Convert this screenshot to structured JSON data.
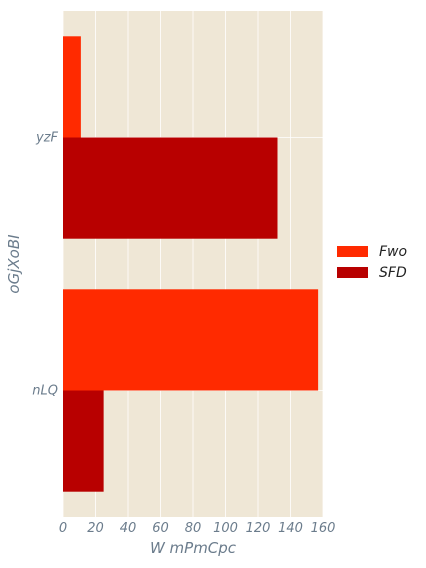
{
  "chart_data": {
    "type": "bar",
    "orientation": "horizontal",
    "categories": [
      "nLQ",
      "yzF"
    ],
    "series": [
      {
        "name": "Fwo",
        "color": "#ff2a00",
        "values": [
          157,
          11
        ]
      },
      {
        "name": "SFD",
        "color": "#b80000",
        "values": [
          25,
          132
        ]
      }
    ],
    "xlabel": "W mPmCpc",
    "ylabel": "oGjXoBI",
    "xlim": [
      0,
      160
    ],
    "xticks": [
      0,
      20,
      40,
      60,
      80,
      100,
      120,
      140,
      160
    ],
    "grid": true,
    "legend_position": "right",
    "background": "#efe7d6",
    "grid_color": "#ffffff"
  }
}
